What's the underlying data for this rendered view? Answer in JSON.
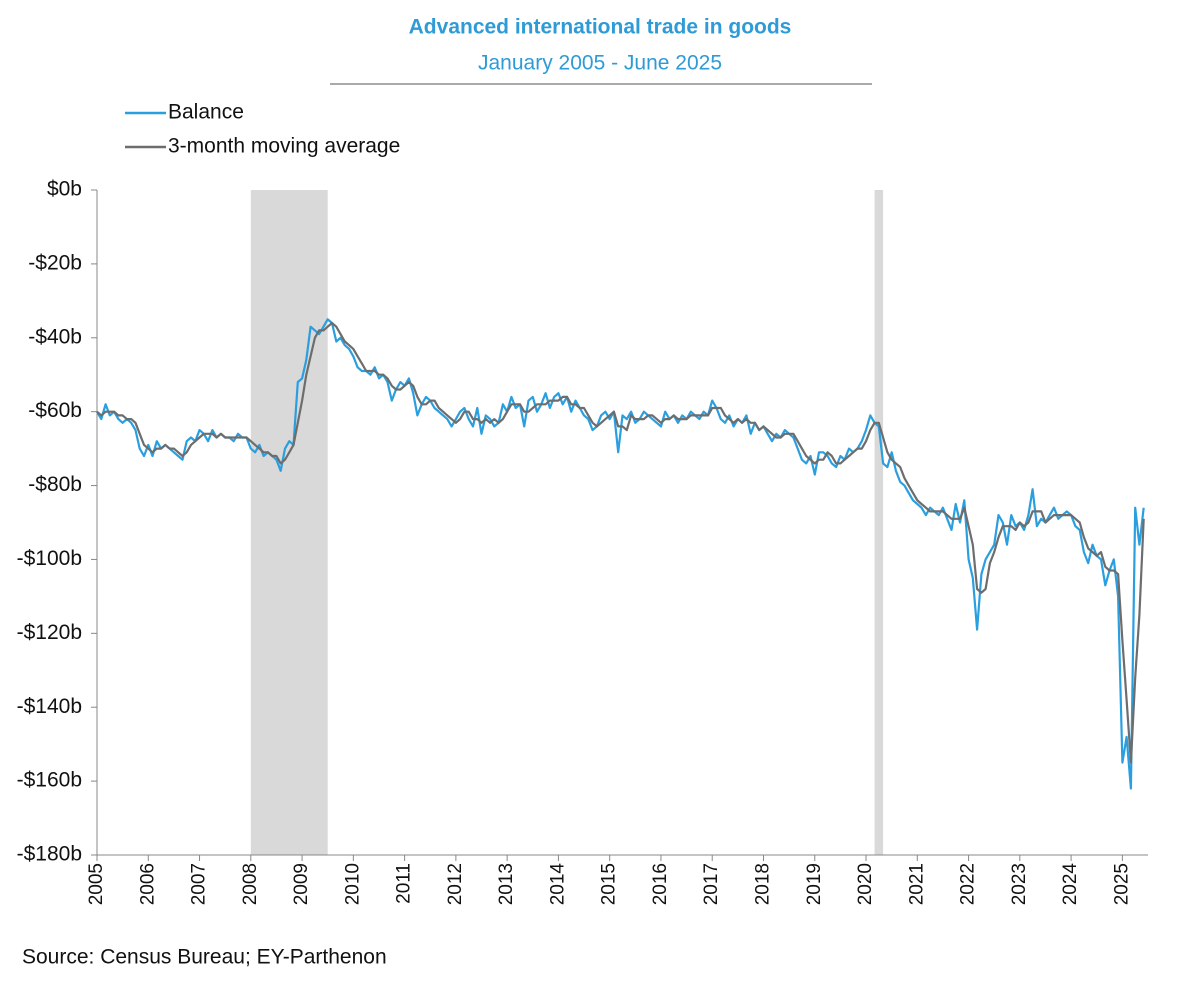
{
  "chart_data": {
    "type": "line",
    "title": "Advanced international trade in goods",
    "subtitle": "January 2005 - June 2025",
    "source": "Source: Census Bureau; EY-Parthenon",
    "xlim": [
      2005,
      2025.5
    ],
    "xticks": [
      2005,
      2006,
      2007,
      2008,
      2009,
      2010,
      2011,
      2012,
      2013,
      2014,
      2015,
      2016,
      2017,
      2018,
      2019,
      2020,
      2021,
      2022,
      2023,
      2024,
      2025
    ],
    "ylim": [
      -180,
      0
    ],
    "yticks": [
      {
        "value": 0,
        "label": "$0b"
      },
      {
        "value": -20,
        "label": "-$20b"
      },
      {
        "value": -40,
        "label": "-$40b"
      },
      {
        "value": -60,
        "label": "-$60b"
      },
      {
        "value": -80,
        "label": "-$80b"
      },
      {
        "value": -100,
        "label": "-$100b"
      },
      {
        "value": -120,
        "label": "-$120b"
      },
      {
        "value": -140,
        "label": "-$140b"
      },
      {
        "value": -160,
        "label": "-$160b"
      },
      {
        "value": -180,
        "label": "-$180b"
      }
    ],
    "shaded_periods": [
      {
        "start": 2008,
        "end": 2009.5
      },
      {
        "start": 2020.167,
        "end": 2020.333
      }
    ],
    "shade_color": "#d9d9d9",
    "x": [
      2005,
      2005.083,
      2005.167,
      2005.25,
      2005.333,
      2005.417,
      2005.5,
      2005.583,
      2005.667,
      2005.75,
      2005.833,
      2005.917,
      2006,
      2006.083,
      2006.167,
      2006.25,
      2006.333,
      2006.417,
      2006.5,
      2006.583,
      2006.667,
      2006.75,
      2006.833,
      2006.917,
      2007,
      2007.083,
      2007.167,
      2007.25,
      2007.333,
      2007.417,
      2007.5,
      2007.583,
      2007.667,
      2007.75,
      2007.833,
      2007.917,
      2008,
      2008.083,
      2008.167,
      2008.25,
      2008.333,
      2008.417,
      2008.5,
      2008.583,
      2008.667,
      2008.75,
      2008.833,
      2008.917,
      2009,
      2009.083,
      2009.167,
      2009.25,
      2009.333,
      2009.417,
      2009.5,
      2009.583,
      2009.667,
      2009.75,
      2009.833,
      2009.917,
      2010,
      2010.083,
      2010.167,
      2010.25,
      2010.333,
      2010.417,
      2010.5,
      2010.583,
      2010.667,
      2010.75,
      2010.833,
      2010.917,
      2011,
      2011.083,
      2011.167,
      2011.25,
      2011.333,
      2011.417,
      2011.5,
      2011.583,
      2011.667,
      2011.75,
      2011.833,
      2011.917,
      2012,
      2012.083,
      2012.167,
      2012.25,
      2012.333,
      2012.417,
      2012.5,
      2012.583,
      2012.667,
      2012.75,
      2012.833,
      2012.917,
      2013,
      2013.083,
      2013.167,
      2013.25,
      2013.333,
      2013.417,
      2013.5,
      2013.583,
      2013.667,
      2013.75,
      2013.833,
      2013.917,
      2014,
      2014.083,
      2014.167,
      2014.25,
      2014.333,
      2014.417,
      2014.5,
      2014.583,
      2014.667,
      2014.75,
      2014.833,
      2014.917,
      2015,
      2015.083,
      2015.167,
      2015.25,
      2015.333,
      2015.417,
      2015.5,
      2015.583,
      2015.667,
      2015.75,
      2015.833,
      2015.917,
      2016,
      2016.083,
      2016.167,
      2016.25,
      2016.333,
      2016.417,
      2016.5,
      2016.583,
      2016.667,
      2016.75,
      2016.833,
      2016.917,
      2017,
      2017.083,
      2017.167,
      2017.25,
      2017.333,
      2017.417,
      2017.5,
      2017.583,
      2017.667,
      2017.75,
      2017.833,
      2017.917,
      2018,
      2018.083,
      2018.167,
      2018.25,
      2018.333,
      2018.417,
      2018.5,
      2018.583,
      2018.667,
      2018.75,
      2018.833,
      2018.917,
      2019,
      2019.083,
      2019.167,
      2019.25,
      2019.333,
      2019.417,
      2019.5,
      2019.583,
      2019.667,
      2019.75,
      2019.833,
      2019.917,
      2020,
      2020.083,
      2020.167,
      2020.25,
      2020.333,
      2020.417,
      2020.5,
      2020.583,
      2020.667,
      2020.75,
      2020.833,
      2020.917,
      2021,
      2021.083,
      2021.167,
      2021.25,
      2021.333,
      2021.417,
      2021.5,
      2021.583,
      2021.667,
      2021.75,
      2021.833,
      2021.917,
      2022,
      2022.083,
      2022.167,
      2022.25,
      2022.333,
      2022.417,
      2022.5,
      2022.583,
      2022.667,
      2022.75,
      2022.833,
      2022.917,
      2023,
      2023.083,
      2023.167,
      2023.25,
      2023.333,
      2023.417,
      2023.5,
      2023.583,
      2023.667,
      2023.75,
      2023.833,
      2023.917,
      2024,
      2024.083,
      2024.167,
      2024.25,
      2024.333,
      2024.417,
      2024.5,
      2024.583,
      2024.667,
      2024.75,
      2024.833,
      2024.917,
      2025,
      2025.083,
      2025.167,
      2025.25,
      2025.333,
      2025.417
    ],
    "series": [
      {
        "name": "Balance",
        "color": "#2a9fdf",
        "values": [
          -60,
          -62,
          -58,
          -61,
          -60,
          -62,
          -63,
          -62,
          -63,
          -65,
          -70,
          -72,
          -69,
          -72,
          -68,
          -70,
          -69,
          -70,
          -71,
          -72,
          -73,
          -68,
          -67,
          -68,
          -65,
          -66,
          -68,
          -65,
          -67,
          -66,
          -67,
          -67,
          -68,
          -66,
          -67,
          -67,
          -70,
          -71,
          -69,
          -72,
          -71,
          -72,
          -73,
          -76,
          -70,
          -68,
          -69,
          -52,
          -51,
          -46,
          -37,
          -38,
          -39,
          -37,
          -35,
          -36,
          -41,
          -40,
          -42,
          -43,
          -45,
          -48,
          -49,
          -49,
          -50,
          -48,
          -51,
          -50,
          -52,
          -57,
          -54,
          -52,
          -53,
          -51,
          -55,
          -61,
          -58,
          -56,
          -57,
          -59,
          -60,
          -61,
          -62,
          -64,
          -62,
          -60,
          -59,
          -62,
          -64,
          -59,
          -66,
          -61,
          -62,
          -64,
          -63,
          -58,
          -60,
          -56,
          -59,
          -58,
          -64,
          -57,
          -56,
          -60,
          -58,
          -55,
          -59,
          -56,
          -55,
          -58,
          -56,
          -60,
          -57,
          -59,
          -61,
          -62,
          -65,
          -64,
          -61,
          -60,
          -62,
          -60,
          -71,
          -61,
          -62,
          -60,
          -63,
          -62,
          -60,
          -61,
          -62,
          -63,
          -64,
          -60,
          -62,
          -61,
          -63,
          -61,
          -62,
          -60,
          -61,
          -62,
          -60,
          -61,
          -57,
          -59,
          -62,
          -63,
          -61,
          -64,
          -62,
          -63,
          -61,
          -66,
          -63,
          -65,
          -64,
          -66,
          -68,
          -66,
          -67,
          -65,
          -66,
          -67,
          -70,
          -73,
          -74,
          -72,
          -77,
          -71,
          -71,
          -72,
          -74,
          -75,
          -72,
          -73,
          -70,
          -71,
          -70,
          -68,
          -65,
          -61,
          -63,
          -64,
          -74,
          -75,
          -71,
          -76,
          -79,
          -80,
          -82,
          -84,
          -85,
          -86,
          -88,
          -86,
          -87,
          -88,
          -86,
          -89,
          -92,
          -85,
          -90,
          -84,
          -100,
          -105,
          -119,
          -104,
          -100,
          -98,
          -96,
          -88,
          -90,
          -96,
          -88,
          -91,
          -90,
          -92,
          -88,
          -81,
          -91,
          -89,
          -90,
          -88,
          -86,
          -89,
          -88,
          -87,
          -88,
          -91,
          -92,
          -98,
          -101,
          -96,
          -99,
          -100,
          -107,
          -103,
          -100,
          -110,
          -155,
          -148,
          -162,
          -86,
          -96,
          -86
        ]
      },
      {
        "name": "3-month moving average",
        "color": "#6d6d6d",
        "values": [
          -60,
          -61,
          -60,
          -60,
          -60,
          -61,
          -61,
          -62,
          -62,
          -63,
          -66,
          -69,
          -70,
          -71,
          -70,
          -70,
          -69,
          -70,
          -70,
          -71,
          -72,
          -71,
          -69,
          -68,
          -67,
          -66,
          -66,
          -66,
          -67,
          -66,
          -67,
          -67,
          -67,
          -67,
          -67,
          -67,
          -68,
          -69,
          -70,
          -71,
          -71,
          -72,
          -72,
          -74,
          -73,
          -71,
          -69,
          -63,
          -57,
          -50,
          -45,
          -40,
          -38,
          -38,
          -37,
          -36,
          -37,
          -39,
          -41,
          -42,
          -43,
          -45,
          -47,
          -49,
          -49,
          -49,
          -50,
          -50,
          -51,
          -53,
          -54,
          -54,
          -53,
          -52,
          -53,
          -56,
          -58,
          -58,
          -57,
          -57,
          -59,
          -60,
          -61,
          -62,
          -63,
          -62,
          -60,
          -60,
          -62,
          -62,
          -63,
          -62,
          -63,
          -62,
          -63,
          -62,
          -60,
          -58,
          -58,
          -58,
          -60,
          -60,
          -59,
          -58,
          -58,
          -58,
          -57,
          -57,
          -57,
          -56,
          -56,
          -58,
          -58,
          -59,
          -59,
          -61,
          -63,
          -64,
          -63,
          -62,
          -61,
          -60,
          -64,
          -64,
          -65,
          -61,
          -62,
          -62,
          -62,
          -61,
          -61,
          -62,
          -63,
          -62,
          -62,
          -61,
          -62,
          -62,
          -62,
          -61,
          -61,
          -61,
          -61,
          -61,
          -59,
          -59,
          -59,
          -61,
          -62,
          -63,
          -62,
          -63,
          -62,
          -63,
          -63,
          -65,
          -64,
          -65,
          -66,
          -67,
          -67,
          -66,
          -66,
          -66,
          -68,
          -70,
          -72,
          -73,
          -74,
          -73,
          -73,
          -71,
          -72,
          -74,
          -74,
          -73,
          -72,
          -71,
          -70,
          -70,
          -68,
          -65,
          -63,
          -63,
          -67,
          -71,
          -73,
          -74,
          -75,
          -78,
          -80,
          -82,
          -84,
          -85,
          -86,
          -87,
          -87,
          -87,
          -87,
          -88,
          -89,
          -89,
          -89,
          -86,
          -91,
          -96,
          -108,
          -109,
          -108,
          -101,
          -98,
          -94,
          -91,
          -91,
          -91,
          -92,
          -90,
          -91,
          -90,
          -87,
          -87,
          -87,
          -90,
          -89,
          -88,
          -88,
          -88,
          -88,
          -88,
          -89,
          -90,
          -94,
          -97,
          -98,
          -99,
          -98,
          -102,
          -103,
          -103,
          -104,
          -122,
          -138,
          -155,
          -132,
          -115,
          -89
        ]
      }
    ]
  }
}
